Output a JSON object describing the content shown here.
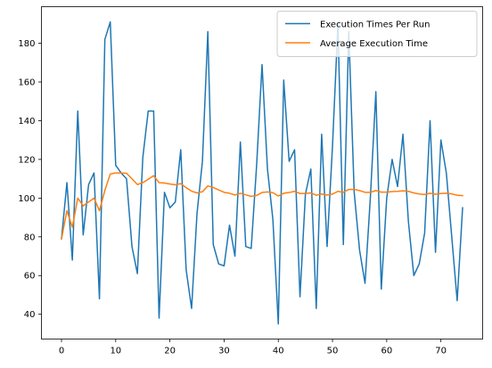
{
  "chart_data": {
    "type": "line",
    "title": "",
    "xlabel": "",
    "ylabel": "",
    "xlim": [
      -3.7,
      77.7
    ],
    "ylim": [
      27.2,
      198.9
    ],
    "xticks": [
      0,
      10,
      20,
      30,
      40,
      50,
      60,
      70
    ],
    "yticks": [
      40,
      60,
      80,
      100,
      120,
      140,
      160,
      180
    ],
    "grid": false,
    "legend_position": "top-right",
    "series": [
      {
        "name": "Execution Times Per Run",
        "color": "#1f77b4",
        "x": [
          0,
          1,
          2,
          3,
          4,
          5,
          6,
          7,
          8,
          9,
          10,
          11,
          12,
          13,
          14,
          15,
          16,
          17,
          18,
          19,
          20,
          21,
          22,
          23,
          24,
          25,
          26,
          27,
          28,
          29,
          30,
          31,
          32,
          33,
          34,
          35,
          36,
          37,
          38,
          39,
          40,
          41,
          42,
          43,
          44,
          45,
          46,
          47,
          48,
          49,
          50,
          51,
          52,
          53,
          54,
          55,
          56,
          57,
          58,
          59,
          60,
          61,
          62,
          63,
          64,
          65,
          66,
          67,
          68,
          69,
          70,
          71,
          72,
          73,
          74
        ],
        "values": [
          79,
          108,
          68,
          145,
          81,
          107,
          113,
          48,
          182,
          191,
          117,
          113,
          110,
          75,
          61,
          121,
          145,
          145,
          38,
          103,
          95,
          98,
          125,
          63,
          43,
          92,
          119,
          186,
          76,
          66,
          65,
          86,
          70,
          129,
          75,
          74,
          117,
          169,
          115,
          89,
          35,
          161,
          119,
          125,
          49,
          102,
          115,
          43,
          133,
          75,
          127,
          190,
          76,
          186,
          103,
          73,
          56,
          101,
          155,
          53,
          100,
          120,
          106,
          133,
          88,
          60,
          66,
          82,
          140,
          72,
          130,
          113,
          80,
          47,
          95
        ],
        "linewidth": 1.5
      },
      {
        "name": "Average Execution Time",
        "color": "#ff7f0e",
        "x": [
          0,
          1,
          2,
          3,
          4,
          5,
          6,
          7,
          8,
          9,
          10,
          11,
          12,
          13,
          14,
          15,
          16,
          17,
          18,
          19,
          20,
          21,
          22,
          23,
          24,
          25,
          26,
          27,
          28,
          29,
          30,
          31,
          32,
          33,
          34,
          35,
          36,
          37,
          38,
          39,
          40,
          41,
          42,
          43,
          44,
          45,
          46,
          47,
          48,
          49,
          50,
          51,
          52,
          53,
          54,
          55,
          56,
          57,
          58,
          59,
          60,
          61,
          62,
          63,
          64,
          65,
          66,
          67,
          68,
          69,
          70,
          71,
          72,
          73,
          74
        ],
        "values": [
          79,
          93.5,
          85,
          100,
          96,
          98,
          100,
          93.5,
          104,
          112.5,
          113,
          113,
          112.8,
          110,
          107,
          108,
          109.7,
          111.6,
          108,
          107.8,
          107.3,
          106.9,
          107.5,
          105.4,
          103.6,
          102.7,
          103.3,
          106.3,
          105.5,
          104.2,
          103,
          102.5,
          101.6,
          102.5,
          101.7,
          100.9,
          101.4,
          102.9,
          103.2,
          102.8,
          101.1,
          102.5,
          102.9,
          103.5,
          102.4,
          102.4,
          102.7,
          101.5,
          102.1,
          101.6,
          102.1,
          103.5,
          103,
          104.5,
          104.5,
          103.9,
          103,
          103,
          103.9,
          103.1,
          103.1,
          103.4,
          103.5,
          103.8,
          103.5,
          102.7,
          102.1,
          101.9,
          102.5,
          102,
          102.4,
          102.5,
          102.2,
          101.5,
          101.3
        ],
        "linewidth": 1.5
      }
    ]
  }
}
